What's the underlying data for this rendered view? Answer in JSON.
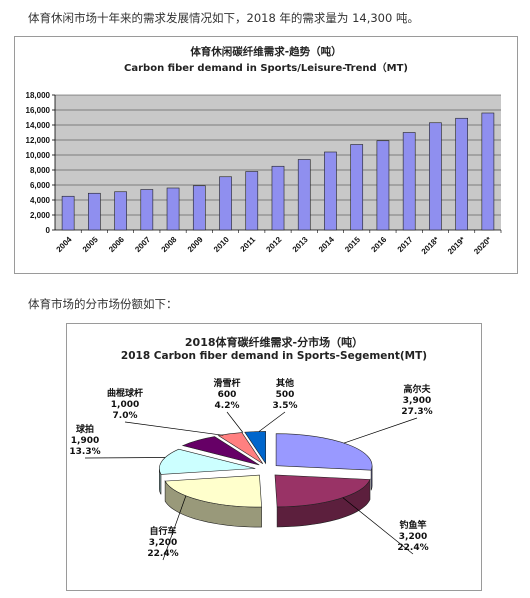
{
  "intro": {
    "line1": "体育休闲市场十年来的需求发展情况如下，2018 年的需求量为 14,300 吨。",
    "line2": "体育市场的分市场份额如下："
  },
  "chart_data": [
    {
      "type": "bar",
      "title": "体育休闲碳纤维需求-趋势（吨）",
      "subtitle": "Carbon fiber demand in Sports/Leisure-Trend（MT)",
      "categories": [
        "2004",
        "2005",
        "2006",
        "2007",
        "2008",
        "2009",
        "2010",
        "2011",
        "2012",
        "2013",
        "2014",
        "2015",
        "2016",
        "2017",
        "2018*",
        "2019*",
        "2020*"
      ],
      "values": [
        4500,
        4900,
        5100,
        5400,
        5600,
        5900,
        7100,
        7800,
        8500,
        9400,
        10400,
        11400,
        11900,
        13000,
        14300,
        14900,
        15600
      ],
      "ylim": [
        0,
        18000
      ],
      "yticks": [
        "0",
        "2,000",
        "4,000",
        "6,000",
        "8,000",
        "10,000",
        "12,000",
        "14,000",
        "16,000",
        "18,000"
      ],
      "grid": true,
      "bar_color": "#8f8fef"
    },
    {
      "type": "pie",
      "title": "2018体育碳纤维需求-分市场（吨）",
      "subtitle": "2018 Carbon fiber demand in Sports-Segement(MT)",
      "slices": [
        {
          "name": "高尔夫",
          "value": 3900,
          "value_label": "3,900",
          "pct": "27.3%",
          "color": "#9999ff"
        },
        {
          "name": "钓鱼竿",
          "value": 3200,
          "value_label": "3,200",
          "pct": "22.4%",
          "color": "#993366"
        },
        {
          "name": "自行车",
          "value": 3200,
          "value_label": "3,200",
          "pct": "22.4%",
          "color": "#ffffcc"
        },
        {
          "name": "球拍",
          "value": 1900,
          "value_label": "1,900",
          "pct": "13.3%",
          "color": "#ccffff"
        },
        {
          "name": "曲棍球杆",
          "value": 1000,
          "value_label": "1,000",
          "pct": "7.0%",
          "color": "#660066"
        },
        {
          "name": "滑雪杆",
          "value": 600,
          "value_label": "600",
          "pct": "4.2%",
          "color": "#ff8080"
        },
        {
          "name": "其他",
          "value": 500,
          "value_label": "500",
          "pct": "3.5%",
          "color": "#0066cc"
        }
      ]
    }
  ]
}
